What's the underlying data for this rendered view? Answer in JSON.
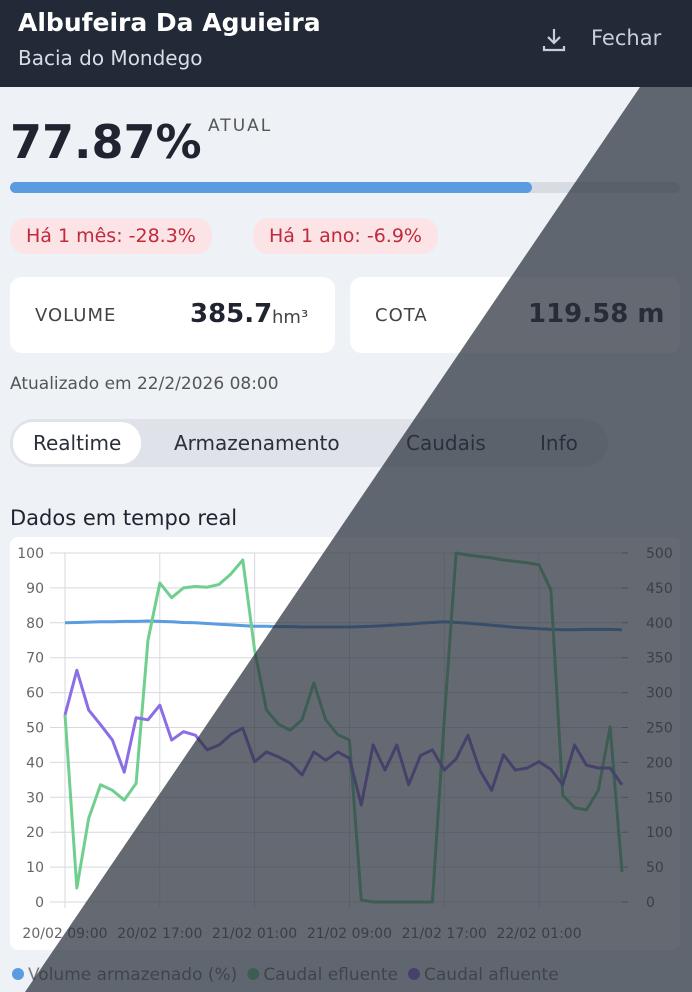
{
  "header": {
    "title": "Albufeira Da Aguieira",
    "subtitle": "Bacia do Mondego",
    "close": "Fechar"
  },
  "level": {
    "value": 77.87,
    "label": "77.87%"
  },
  "level_caption": "ATUAL",
  "changes": [
    "Há 1 mês: -28.3%",
    "Há 1 ano: -6.9%"
  ],
  "cards": [
    {
      "label": "VOLUME",
      "value": "385.7",
      "unit": "hm³"
    },
    {
      "label": "COTA",
      "value": "119.58 m"
    }
  ],
  "updated": "Atualizado em 22/2/2026 08:00",
  "tabs": [
    "Realtime",
    "Armazenamento",
    "Caudais",
    "Info"
  ],
  "section_title": "Dados em tempo real",
  "chart_data": {
    "type": "line",
    "categories": [
      "20/02 09:00",
      null,
      null,
      null,
      null,
      null,
      null,
      null,
      "20/02 17:00",
      null,
      null,
      null,
      null,
      null,
      null,
      null,
      "21/02 01:00",
      null,
      null,
      null,
      null,
      null,
      null,
      null,
      "21/02 09:00",
      null,
      null,
      null,
      null,
      null,
      null,
      null,
      "21/02 17:00",
      null,
      null,
      null,
      null,
      null,
      null,
      null,
      "22/02 01:00",
      null,
      null,
      null,
      null,
      null,
      null,
      null
    ],
    "series": [
      {
        "name": "Volume armazenado (%)",
        "color": "#5b9be0",
        "values": [
          80,
          80.1,
          80.2,
          80.3,
          80.3,
          80.4,
          80.4,
          80.5,
          80.4,
          80.3,
          80.1,
          80,
          79.8,
          79.6,
          79.4,
          79.2,
          79,
          79,
          78.9,
          78.9,
          78.8,
          78.8,
          78.8,
          78.8,
          78.8,
          78.9,
          79,
          79.2,
          79.4,
          79.6,
          79.9,
          80.1,
          80.3,
          80.1,
          79.9,
          79.6,
          79.3,
          79,
          78.7,
          78.5,
          78.3,
          78.1,
          78,
          78,
          78.1,
          78.1,
          78.1,
          78
        ]
      },
      {
        "name": "Caudal efluente",
        "color": "#6fcf8f",
        "axis": "y2",
        "values": [
          268,
          20,
          120,
          168,
          160,
          146,
          170,
          375,
          457,
          436,
          450,
          452,
          451,
          455,
          470,
          490,
          361,
          275,
          255,
          246,
          261,
          314,
          261,
          240,
          232,
          3,
          0,
          0,
          0,
          0,
          0,
          0,
          261,
          500,
          497,
          495,
          493,
          490,
          488,
          486,
          483,
          447,
          153,
          135,
          132,
          160,
          251,
          43
        ]
      },
      {
        "name": "Caudal afluente",
        "color": "#8b6ee6",
        "axis": "y2",
        "values": [
          268,
          332,
          275,
          254,
          232,
          186,
          264,
          261,
          282,
          232,
          244,
          239,
          218,
          225,
          240,
          249,
          201,
          215,
          208,
          199,
          182,
          215,
          203,
          215,
          206,
          139,
          225,
          189,
          225,
          168,
          210,
          218,
          189,
          205,
          239,
          189,
          160,
          211,
          189,
          192,
          201,
          190,
          168,
          225,
          196,
          192,
          192,
          168
        ]
      }
    ],
    "ylim": [
      0,
      100
    ],
    "yticks": [
      0,
      10,
      20,
      30,
      40,
      50,
      60,
      70,
      80,
      90,
      100
    ],
    "y2lim": [
      0,
      500
    ],
    "y2ticks": [
      0,
      50,
      100,
      150,
      200,
      250,
      300,
      350,
      400,
      450,
      500
    ],
    "grid": true
  }
}
